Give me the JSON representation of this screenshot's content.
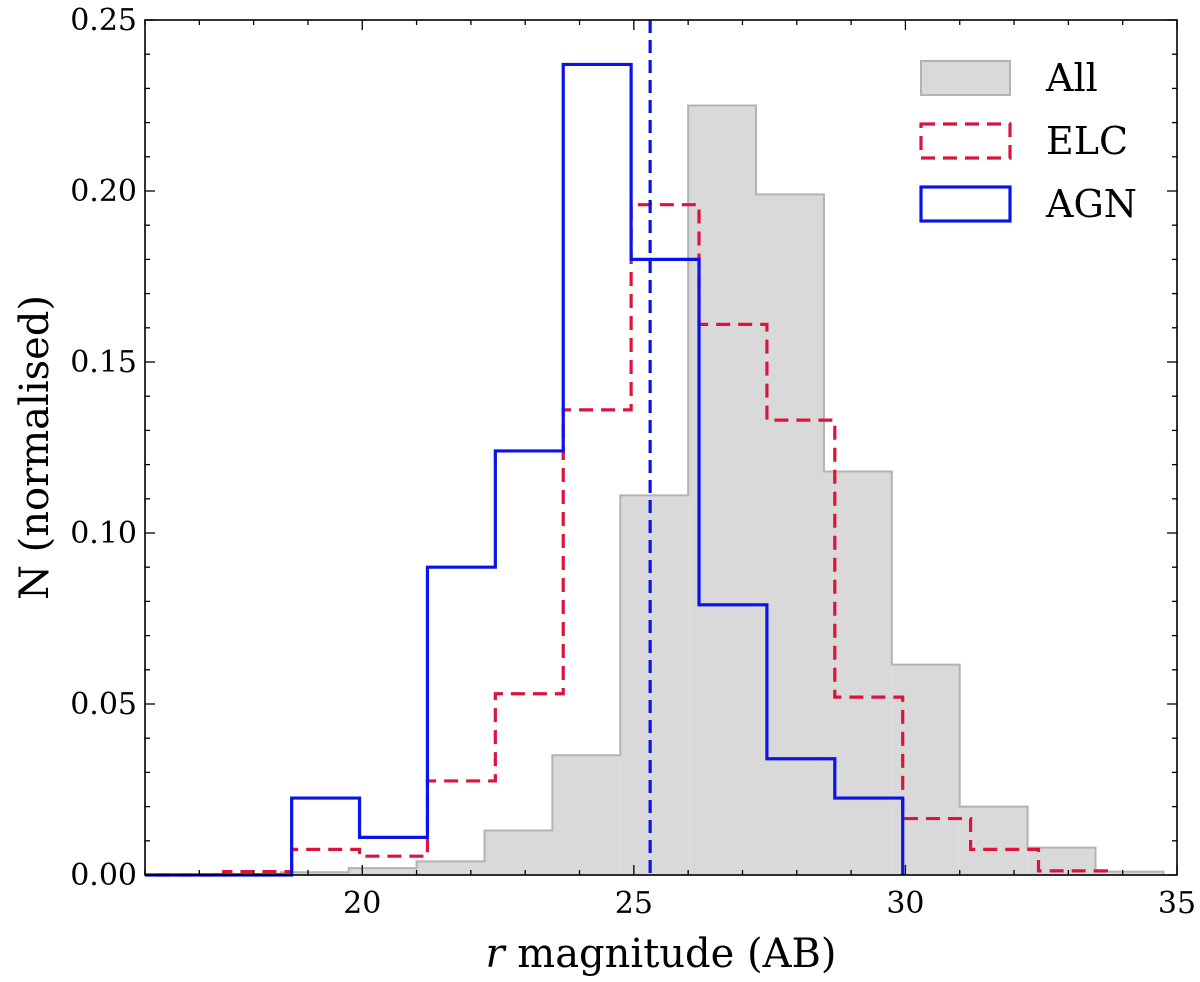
{
  "chart_data": {
    "type": "histogram",
    "title": "",
    "xlabel_var": "r",
    "xlabel_rest": " magnitude (AB)",
    "ylabel": "N (normalised)",
    "xlim": [
      16,
      35
    ],
    "ylim": [
      0,
      0.25
    ],
    "xticks": [
      20,
      25,
      30,
      35
    ],
    "xtick_labels": [
      "20",
      "25",
      "30",
      "35"
    ],
    "yticks": [
      0,
      0.05,
      0.1,
      0.15,
      0.2,
      0.25
    ],
    "ytick_labels": [
      "0.00",
      "0.05",
      "0.10",
      "0.15",
      "0.20",
      "0.25"
    ],
    "legend_position": "top-right",
    "series": [
      {
        "name": "All",
        "style": "filled",
        "fill": "#d9d9d9",
        "stroke": "#b3b3b3",
        "edges": [
          16.0,
          17.25,
          18.5,
          19.75,
          21.0,
          22.25,
          23.5,
          24.75,
          26.0,
          27.25,
          28.5,
          29.75,
          31.0,
          32.25,
          33.5,
          34.75
        ],
        "values": [
          0.0,
          0.0003,
          0.0008,
          0.002,
          0.004,
          0.013,
          0.035,
          0.111,
          0.225,
          0.199,
          0.118,
          0.0615,
          0.02,
          0.008,
          0.001
        ]
      },
      {
        "name": "ELC",
        "style": "dashed",
        "stroke": "#dc143c",
        "edges": [
          16.2,
          17.45,
          18.7,
          19.95,
          21.2,
          22.45,
          23.7,
          24.95,
          26.2,
          27.45,
          28.7,
          29.95,
          31.2,
          32.45,
          33.7
        ],
        "values": [
          0.0,
          0.001,
          0.0075,
          0.0055,
          0.0275,
          0.053,
          0.136,
          0.196,
          0.161,
          0.133,
          0.052,
          0.0165,
          0.0075,
          0.0012
        ]
      },
      {
        "name": "AGN",
        "style": "solid",
        "stroke": "#0a14e6",
        "edges": [
          16.0,
          18.7,
          19.95,
          21.2,
          22.45,
          23.7,
          24.95,
          26.2,
          27.45,
          28.7,
          29.95
        ],
        "values": [
          0.0,
          0.0225,
          0.011,
          0.09,
          0.124,
          0.237,
          0.18,
          0.079,
          0.034,
          0.0225
        ]
      }
    ],
    "vline": {
      "x": 25.3,
      "style": "dashed",
      "color": "#0a14e6"
    }
  }
}
